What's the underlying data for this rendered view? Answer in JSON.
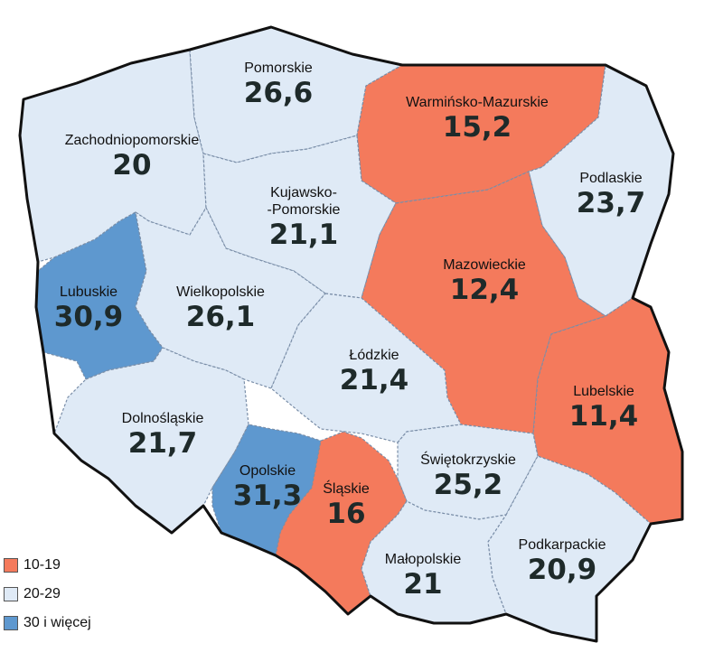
{
  "colors": {
    "low": "#f47a5c",
    "mid": "#dfeaf6",
    "high": "#5e98cf",
    "border": "#111111"
  },
  "legend": [
    {
      "label": "10-19",
      "color": "#f47a5c"
    },
    {
      "label": "20-29",
      "color": "#dfeaf6"
    },
    {
      "label": "30 i więcej",
      "color": "#5e98cf"
    }
  ],
  "regions": [
    {
      "name": "Pomorskie",
      "value": "26,6",
      "class": "20-29"
    },
    {
      "name": "Warmińsko-Mazurskie",
      "value": "15,2",
      "class": "10-19"
    },
    {
      "name": "Zachodniopomorskie",
      "value": "20",
      "class": "20-29"
    },
    {
      "name": "Podlaskie",
      "value": "23,7",
      "class": "20-29"
    },
    {
      "name": "Kujawsko-\n-Pomorskie",
      "value": "21,1",
      "class": "20-29"
    },
    {
      "name": "Mazowieckie",
      "value": "12,4",
      "class": "10-19"
    },
    {
      "name": "Lubuskie",
      "value": "30,9",
      "class": "30 i więcej"
    },
    {
      "name": "Wielkopolskie",
      "value": "26,1",
      "class": "20-29"
    },
    {
      "name": "Łódzkie",
      "value": "21,4",
      "class": "20-29"
    },
    {
      "name": "Lubelskie",
      "value": "11,4",
      "class": "10-19"
    },
    {
      "name": "Dolnośląskie",
      "value": "21,7",
      "class": "20-29"
    },
    {
      "name": "Świętokrzyskie",
      "value": "25,2",
      "class": "20-29"
    },
    {
      "name": "Opolskie",
      "value": "31,3",
      "class": "30 i więcej"
    },
    {
      "name": "Śląskie",
      "value": "16",
      "class": "10-19"
    },
    {
      "name": "Podkarpackie",
      "value": "20,9",
      "class": "20-29"
    },
    {
      "name": "Małopolskie",
      "value": "21",
      "class": "20-29"
    }
  ]
}
